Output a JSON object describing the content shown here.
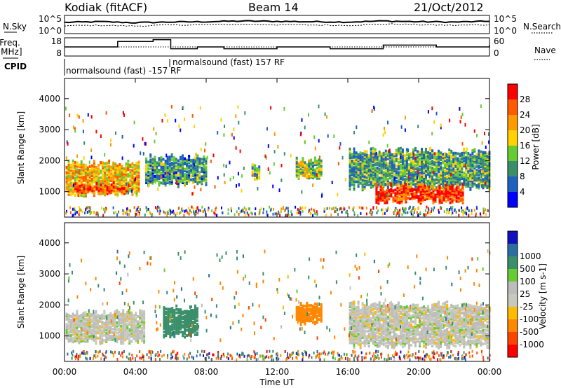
{
  "header": {
    "station": "Kodiak (fitACF)",
    "beam": "Beam 14",
    "date": "21/Oct/2012"
  },
  "left_labels": {
    "nsky": "N.Sky",
    "freq_line1": "Freq.",
    "freq_line2": "[MHz]",
    "cpid": "CPID"
  },
  "right_labels": {
    "nsearch": "N.Search",
    "nave": "Nave"
  },
  "cpid_labels": {
    "first": "normalsound (fast) -157 RF",
    "second": "normalsound (fast) 157 RF"
  },
  "colors": {
    "power_scale": [
      "#0000ff",
      "#2060c0",
      "#3a8f6a",
      "#66cc33",
      "#ffd200",
      "#ff9900",
      "#ff5a00",
      "#ff0000"
    ],
    "velocity_scale": [
      "#ff0000",
      "#ff4400",
      "#ff8800",
      "#ffbb00",
      "#c8c8bc",
      "#bcbcbc",
      "#66cc33",
      "#3a8f6a",
      "#2a6fa0",
      "#1010c0"
    ]
  },
  "chart_data": [
    {
      "type": "line",
      "panel": "noise",
      "left_ticks": [
        "10^5",
        "10^0"
      ],
      "right_ticks": [
        "10^5",
        "10^0"
      ],
      "series": [
        {
          "name": "N.Sky",
          "x": [
            0,
            2,
            4,
            6,
            8,
            10,
            12,
            14,
            16,
            18,
            20,
            22,
            24
          ],
          "values": [
            3.4,
            3.6,
            3.3,
            3.5,
            3.6,
            3.8,
            3.7,
            3.6,
            3.5,
            3.8,
            3.6,
            3.5,
            3.7
          ]
        },
        {
          "name": "N.Search",
          "x": [
            0,
            2,
            4,
            6,
            8,
            10,
            12,
            14,
            16,
            18,
            20,
            22,
            24
          ],
          "values": [
            2.4,
            2.5,
            2.3,
            2.6,
            2.7,
            2.8,
            2.7,
            2.6,
            2.5,
            2.9,
            2.7,
            2.5,
            2.7
          ]
        }
      ]
    },
    {
      "type": "line",
      "panel": "frequency_nave",
      "left_ticks": [
        "18",
        "8"
      ],
      "right_ticks": [
        "60",
        "0"
      ],
      "series": [
        {
          "name": "Freq.",
          "x": [
            0,
            1.5,
            3,
            5,
            6,
            7.5,
            9,
            12,
            15,
            18,
            21,
            24
          ],
          "values": [
            13,
            13,
            16,
            17,
            12,
            13,
            12,
            13,
            12,
            14,
            13,
            14
          ]
        },
        {
          "name": "Nave",
          "x": [
            0,
            24
          ],
          "values": [
            13,
            13
          ]
        }
      ]
    },
    {
      "type": "heatmap",
      "panel": "power",
      "ylabel": "Slant Range [km]",
      "ylim": [
        180,
        4650
      ],
      "y_ticks": [
        "1000",
        "2000",
        "3000",
        "4000"
      ],
      "colorbar_label": "Power [dB]",
      "colorbar_ticks": [
        "4",
        "8",
        "12",
        "16",
        "20",
        "24",
        "28"
      ],
      "colorbar_range": [
        0,
        32
      ],
      "regions": [
        {
          "t0": 0,
          "t1": 4.2,
          "r0": 900,
          "r1": 1900,
          "value": 20
        },
        {
          "t0": 0.5,
          "t1": 3.5,
          "r0": 950,
          "r1": 1200,
          "value": 28
        },
        {
          "t0": 4.5,
          "t1": 8,
          "r0": 1200,
          "r1": 2100,
          "value": 10
        },
        {
          "t0": 10.5,
          "t1": 11,
          "r0": 1400,
          "r1": 1800,
          "value": 12
        },
        {
          "t0": 13,
          "t1": 14.5,
          "r0": 1400,
          "r1": 2000,
          "value": 14
        },
        {
          "t0": 16,
          "t1": 24,
          "r0": 1100,
          "r1": 2300,
          "value": 11
        },
        {
          "t0": 17.5,
          "t1": 22.5,
          "r0": 650,
          "r1": 1150,
          "value": 28
        }
      ]
    },
    {
      "type": "heatmap",
      "panel": "velocity",
      "ylabel": "Slant Range [km]",
      "xlabel": "Time UT",
      "ylim": [
        180,
        4650
      ],
      "y_ticks": [
        "1000",
        "2000",
        "3000",
        "4000"
      ],
      "x_ticks": [
        "00:00",
        "04:00",
        "08:00",
        "12:00",
        "16:00",
        "20:00",
        "00:00"
      ],
      "colorbar_label": "Velocity [m s-1]",
      "colorbar_ticks": [
        "-1000",
        "-500",
        "-100",
        "-25",
        "25",
        "100",
        "500",
        "1000"
      ],
      "regions": [
        {
          "t0": 0,
          "t1": 4.5,
          "r0": 800,
          "r1": 1750,
          "value": 0
        },
        {
          "t0": 5.5,
          "t1": 7.5,
          "r0": 1000,
          "r1": 1900,
          "value": 150
        },
        {
          "t0": 13,
          "t1": 14.5,
          "r0": 1400,
          "r1": 2000,
          "value": -200
        },
        {
          "t0": 16,
          "t1": 24,
          "r0": 650,
          "r1": 2000,
          "value": 0
        }
      ]
    }
  ]
}
